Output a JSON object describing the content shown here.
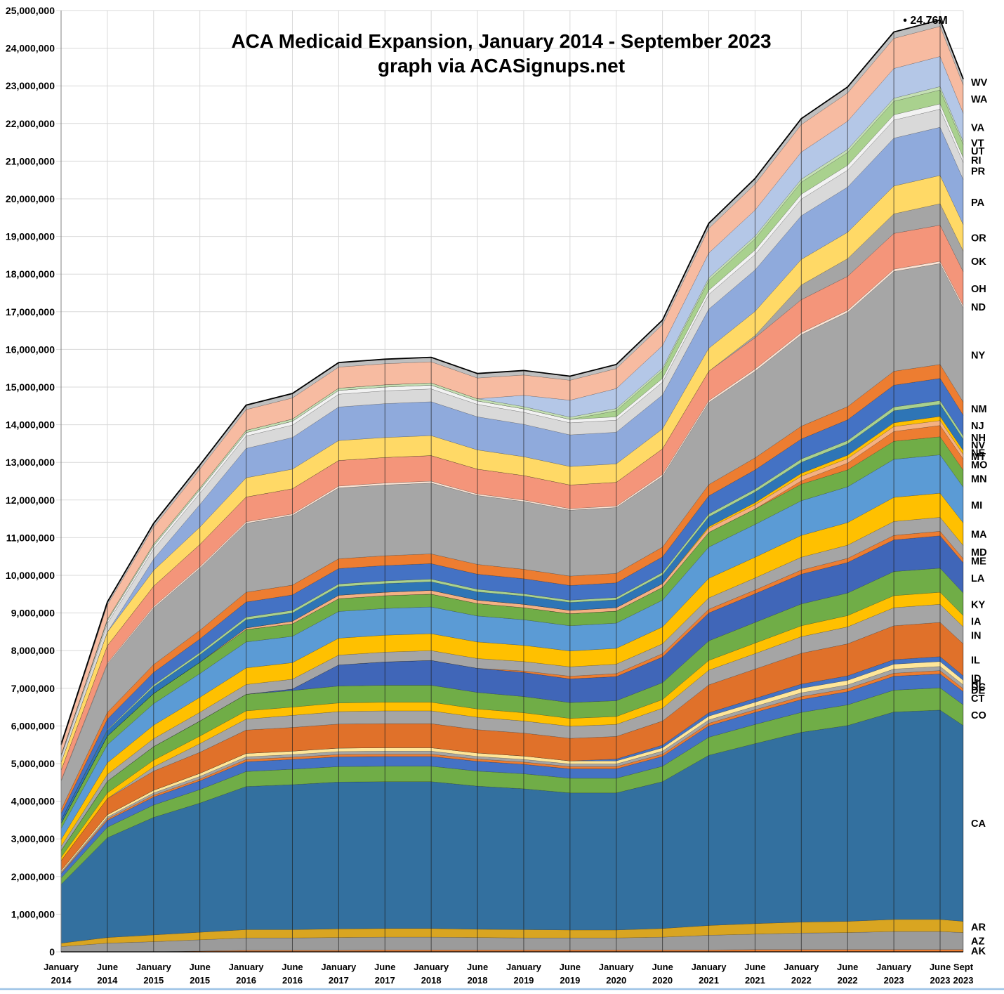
{
  "title": {
    "line1": "ACA Medicaid Expansion, January 2014 - September 2023",
    "line2": "graph via ACASignups.net"
  },
  "annotation": {
    "text": "• 24.76M",
    "value_millions": 24.76,
    "at_x_index": 19
  },
  "chart_data": {
    "type": "area",
    "stacked": true,
    "units": "enrollees (values in millions)",
    "title": "ACA Medicaid Expansion, January 2014 - September 2023",
    "subtitle": "graph via ACASignups.net",
    "xlabel": "",
    "ylabel": "",
    "ylim": [
      0,
      25000000
    ],
    "y_tick_interval": 1000000,
    "grid": true,
    "legend_position": "right-edge-state-labels",
    "y_tick_labels": [
      "0",
      "1,000,000",
      "2,000,000",
      "3,000,000",
      "4,000,000",
      "5,000,000",
      "6,000,000",
      "7,000,000",
      "8,000,000",
      "9,000,000",
      "10,000,000",
      "11,000,000",
      "12,000,000",
      "13,000,000",
      "14,000,000",
      "15,000,000",
      "16,000,000",
      "17,000,000",
      "18,000,000",
      "19,000,000",
      "20,000,000",
      "21,000,000",
      "22,000,000",
      "23,000,000",
      "24,000,000",
      "25,000,000"
    ],
    "x_tick_labels": [
      [
        "January",
        "2014"
      ],
      [
        "June",
        "2014"
      ],
      [
        "January",
        "2015"
      ],
      [
        "June",
        "2015"
      ],
      [
        "January",
        "2016"
      ],
      [
        "June",
        "2016"
      ],
      [
        "January",
        "2017"
      ],
      [
        "June",
        "2017"
      ],
      [
        "January",
        "2018"
      ],
      [
        "June",
        "2018"
      ],
      [
        "January",
        "2019"
      ],
      [
        "June",
        "2019"
      ],
      [
        "January",
        "2020"
      ],
      [
        "June",
        "2020"
      ],
      [
        "January",
        "2021"
      ],
      [
        "June",
        "2021"
      ],
      [
        "January",
        "2022"
      ],
      [
        "June",
        "2022"
      ],
      [
        "January",
        "2023"
      ],
      [
        "June",
        "2023"
      ],
      [
        "Sept",
        "2023"
      ]
    ],
    "series": [
      {
        "code": "AK",
        "color": "#ED7D31",
        "values": [
          0,
          0,
          0,
          0.02,
          0.04,
          0.04,
          0.04,
          0.05,
          0.05,
          0.05,
          0.05,
          0.05,
          0.05,
          0.05,
          0.05,
          0.06,
          0.06,
          0.06,
          0.06,
          0.06,
          0.06
        ]
      },
      {
        "code": "AZ",
        "color": "#9B9B9B",
        "values": [
          0.14,
          0.23,
          0.27,
          0.3,
          0.33,
          0.33,
          0.34,
          0.34,
          0.34,
          0.33,
          0.32,
          0.32,
          0.32,
          0.34,
          0.39,
          0.41,
          0.44,
          0.45,
          0.48,
          0.48,
          0.45
        ]
      },
      {
        "code": "AR",
        "color": "#D9A521",
        "values": [
          0.09,
          0.15,
          0.18,
          0.2,
          0.22,
          0.22,
          0.23,
          0.23,
          0.23,
          0.22,
          0.22,
          0.21,
          0.21,
          0.23,
          0.26,
          0.28,
          0.29,
          0.3,
          0.32,
          0.32,
          0.3
        ]
      },
      {
        "code": "CA",
        "color": "#33709F",
        "values": [
          1.56,
          2.65,
          3.12,
          3.43,
          3.8,
          3.85,
          3.9,
          3.9,
          3.9,
          3.8,
          3.74,
          3.64,
          3.64,
          3.9,
          4.52,
          4.78,
          5.04,
          5.2,
          5.51,
          5.56,
          5.2
        ]
      },
      {
        "code": "CO",
        "color": "#70AD47",
        "values": [
          0.17,
          0.28,
          0.33,
          0.36,
          0.4,
          0.41,
          0.41,
          0.41,
          0.41,
          0.4,
          0.4,
          0.39,
          0.39,
          0.41,
          0.48,
          0.51,
          0.53,
          0.55,
          0.58,
          0.59,
          0.55
        ]
      },
      {
        "code": "CT",
        "color": "#4472C4",
        "values": [
          0.11,
          0.18,
          0.21,
          0.23,
          0.26,
          0.26,
          0.26,
          0.26,
          0.26,
          0.26,
          0.25,
          0.25,
          0.25,
          0.26,
          0.3,
          0.32,
          0.34,
          0.35,
          0.37,
          0.37,
          0.35
        ]
      },
      {
        "code": "DE",
        "color": "#ED7D31",
        "values": [
          0.02,
          0.04,
          0.05,
          0.05,
          0.06,
          0.06,
          0.06,
          0.06,
          0.06,
          0.06,
          0.06,
          0.06,
          0.06,
          0.06,
          0.07,
          0.07,
          0.08,
          0.08,
          0.08,
          0.09,
          0.08
        ]
      },
      {
        "code": "DC",
        "color": "#A5A5A5",
        "values": [
          0.03,
          0.05,
          0.06,
          0.07,
          0.07,
          0.07,
          0.08,
          0.08,
          0.08,
          0.07,
          0.07,
          0.07,
          0.07,
          0.08,
          0.09,
          0.09,
          0.1,
          0.1,
          0.11,
          0.11,
          0.1
        ]
      },
      {
        "code": "HI",
        "color": "#FFE699",
        "values": [
          0.04,
          0.06,
          0.07,
          0.08,
          0.09,
          0.09,
          0.09,
          0.09,
          0.09,
          0.09,
          0.09,
          0.08,
          0.08,
          0.09,
          0.1,
          0.11,
          0.12,
          0.12,
          0.13,
          0.13,
          0.12
        ]
      },
      {
        "code": "ID",
        "color": "#4472C4",
        "values": [
          0,
          0,
          0,
          0,
          0,
          0,
          0,
          0,
          0,
          0,
          0,
          0,
          0.05,
          0.07,
          0.09,
          0.1,
          0.11,
          0.12,
          0.12,
          0.13,
          0.12
        ]
      },
      {
        "code": "IL",
        "color": "#E0712A",
        "values": [
          0.26,
          0.43,
          0.51,
          0.56,
          0.62,
          0.63,
          0.64,
          0.64,
          0.64,
          0.62,
          0.61,
          0.6,
          0.6,
          0.64,
          0.74,
          0.78,
          0.82,
          0.85,
          0.9,
          0.91,
          0.85
        ]
      },
      {
        "code": "IN",
        "color": "#A5A5A5",
        "values": [
          0,
          0,
          0.11,
          0.23,
          0.29,
          0.32,
          0.33,
          0.34,
          0.34,
          0.33,
          0.32,
          0.32,
          0.32,
          0.34,
          0.39,
          0.41,
          0.44,
          0.45,
          0.48,
          0.48,
          0.45
        ]
      },
      {
        "code": "IA",
        "color": "#FFC000",
        "values": [
          0.09,
          0.15,
          0.18,
          0.2,
          0.22,
          0.22,
          0.23,
          0.23,
          0.23,
          0.22,
          0.22,
          0.21,
          0.21,
          0.23,
          0.26,
          0.28,
          0.29,
          0.3,
          0.32,
          0.32,
          0.3
        ]
      },
      {
        "code": "KY",
        "color": "#70AD47",
        "values": [
          0.18,
          0.31,
          0.36,
          0.4,
          0.44,
          0.44,
          0.45,
          0.45,
          0.45,
          0.44,
          0.43,
          0.42,
          0.42,
          0.45,
          0.52,
          0.55,
          0.58,
          0.6,
          0.64,
          0.64,
          0.6
        ]
      },
      {
        "code": "LA",
        "color": "#4066B8",
        "values": [
          0,
          0,
          0,
          0,
          0,
          0.04,
          0.56,
          0.62,
          0.66,
          0.64,
          0.64,
          0.63,
          0.64,
          0.68,
          0.74,
          0.76,
          0.79,
          0.81,
          0.84,
          0.86,
          0.8
        ]
      },
      {
        "code": "ME",
        "color": "#ED7D31",
        "values": [
          0,
          0,
          0,
          0,
          0,
          0,
          0,
          0,
          0,
          0,
          0.04,
          0.07,
          0.08,
          0.09,
          0.1,
          0.1,
          0.11,
          0.11,
          0.12,
          0.12,
          0.11
        ]
      },
      {
        "code": "MD",
        "color": "#A5A5A5",
        "values": [
          0.11,
          0.18,
          0.21,
          0.23,
          0.26,
          0.26,
          0.26,
          0.26,
          0.26,
          0.26,
          0.25,
          0.25,
          0.25,
          0.26,
          0.3,
          0.32,
          0.34,
          0.35,
          0.37,
          0.37,
          0.35
        ]
      },
      {
        "code": "MA",
        "color": "#FFC000",
        "values": [
          0.18,
          0.31,
          0.36,
          0.4,
          0.44,
          0.44,
          0.45,
          0.45,
          0.45,
          0.44,
          0.43,
          0.42,
          0.42,
          0.45,
          0.52,
          0.55,
          0.58,
          0.6,
          0.64,
          0.64,
          0.6
        ]
      },
      {
        "code": "MI",
        "color": "#5B9BD5",
        "values": [
          0.29,
          0.48,
          0.57,
          0.63,
          0.69,
          0.7,
          0.71,
          0.71,
          0.71,
          0.69,
          0.68,
          0.67,
          0.67,
          0.71,
          0.83,
          0.87,
          0.92,
          0.95,
          1.01,
          1.02,
          0.95
        ]
      },
      {
        "code": "MN",
        "color": "#70AD47",
        "values": [
          0.14,
          0.23,
          0.27,
          0.3,
          0.33,
          0.33,
          0.34,
          0.34,
          0.34,
          0.33,
          0.32,
          0.32,
          0.32,
          0.34,
          0.39,
          0.41,
          0.44,
          0.45,
          0.48,
          0.48,
          0.45
        ]
      },
      {
        "code": "MO",
        "color": "#ED7D31",
        "values": [
          0,
          0,
          0,
          0,
          0,
          0,
          0,
          0,
          0,
          0,
          0,
          0,
          0,
          0,
          0,
          0,
          0.09,
          0.18,
          0.26,
          0.3,
          0.3
        ]
      },
      {
        "code": "MT",
        "color": "#F4B183",
        "values": [
          0,
          0,
          0,
          0,
          0.04,
          0.07,
          0.09,
          0.09,
          0.1,
          0.09,
          0.09,
          0.09,
          0.09,
          0.1,
          0.11,
          0.11,
          0.12,
          0.12,
          0.13,
          0.13,
          0.12
        ]
      },
      {
        "code": "NE",
        "color": "#FFC000",
        "values": [
          0,
          0,
          0,
          0,
          0,
          0,
          0,
          0,
          0,
          0,
          0,
          0,
          0,
          0,
          0.04,
          0.06,
          0.08,
          0.09,
          0.1,
          0.11,
          0.1
        ]
      },
      {
        "code": "NV",
        "color": "#2E75B6",
        "values": [
          0.09,
          0.15,
          0.18,
          0.2,
          0.22,
          0.22,
          0.23,
          0.23,
          0.23,
          0.22,
          0.22,
          0.21,
          0.21,
          0.23,
          0.26,
          0.28,
          0.29,
          0.3,
          0.32,
          0.32,
          0.3
        ]
      },
      {
        "code": "NH",
        "color": "#A9D18E",
        "values": [
          0,
          0.02,
          0.05,
          0.06,
          0.07,
          0.07,
          0.07,
          0.07,
          0.07,
          0.07,
          0.06,
          0.06,
          0.06,
          0.07,
          0.08,
          0.08,
          0.09,
          0.09,
          0.1,
          0.1,
          0.09
        ]
      },
      {
        "code": "NJ",
        "color": "#4472C4",
        "values": [
          0.17,
          0.28,
          0.33,
          0.36,
          0.4,
          0.41,
          0.41,
          0.41,
          0.41,
          0.4,
          0.4,
          0.39,
          0.39,
          0.41,
          0.48,
          0.51,
          0.53,
          0.55,
          0.58,
          0.59,
          0.55
        ]
      },
      {
        "code": "NM",
        "color": "#ED7D31",
        "values": [
          0.11,
          0.18,
          0.21,
          0.23,
          0.26,
          0.26,
          0.26,
          0.26,
          0.26,
          0.26,
          0.25,
          0.25,
          0.25,
          0.26,
          0.3,
          0.32,
          0.34,
          0.35,
          0.37,
          0.37,
          0.35
        ]
      },
      {
        "code": "NY",
        "color": "#A6A6A6",
        "values": [
          0.75,
          1.28,
          1.5,
          1.65,
          1.83,
          1.85,
          1.88,
          1.88,
          1.88,
          1.83,
          1.8,
          1.75,
          1.75,
          1.88,
          2.18,
          2.3,
          2.43,
          2.5,
          2.65,
          2.68,
          2.5
        ]
      },
      {
        "code": "ND",
        "color": "#FBE5D6",
        "values": [
          0.02,
          0.03,
          0.04,
          0.04,
          0.04,
          0.04,
          0.05,
          0.05,
          0.05,
          0.04,
          0.04,
          0.04,
          0.04,
          0.05,
          0.05,
          0.06,
          0.06,
          0.06,
          0.06,
          0.06,
          0.06
        ]
      },
      {
        "code": "OH",
        "color": "#F4957A",
        "values": [
          0.27,
          0.46,
          0.54,
          0.59,
          0.66,
          0.67,
          0.68,
          0.68,
          0.68,
          0.66,
          0.65,
          0.63,
          0.63,
          0.68,
          0.78,
          0.83,
          0.87,
          0.9,
          0.95,
          0.96,
          0.9
        ]
      },
      {
        "code": "OK",
        "color": "#A5A5A5",
        "values": [
          0,
          0,
          0,
          0,
          0,
          0,
          0,
          0,
          0,
          0,
          0,
          0,
          0,
          0,
          0,
          0.06,
          0.39,
          0.47,
          0.52,
          0.57,
          0.55
        ]
      },
      {
        "code": "OR",
        "color": "#FFD966",
        "values": [
          0.21,
          0.36,
          0.42,
          0.46,
          0.51,
          0.52,
          0.53,
          0.53,
          0.53,
          0.51,
          0.5,
          0.49,
          0.49,
          0.53,
          0.61,
          0.64,
          0.68,
          0.7,
          0.74,
          0.75,
          0.7
        ]
      },
      {
        "code": "PA",
        "color": "#8FAADC",
        "values": [
          0,
          0,
          0.3,
          0.6,
          0.78,
          0.84,
          0.89,
          0.9,
          0.9,
          0.88,
          0.86,
          0.84,
          0.84,
          0.9,
          1.04,
          1.1,
          1.16,
          1.2,
          1.27,
          1.28,
          1.2
        ]
      },
      {
        "code": "PR",
        "color": "#D9D9D9",
        "values": [
          0.14,
          0.23,
          0.27,
          0.3,
          0.33,
          0.33,
          0.34,
          0.34,
          0.34,
          0.33,
          0.32,
          0.32,
          0.32,
          0.34,
          0.39,
          0.41,
          0.44,
          0.45,
          0.48,
          0.48,
          0.45
        ]
      },
      {
        "code": "RI",
        "color": "#F2F2F2",
        "values": [
          0.04,
          0.07,
          0.08,
          0.09,
          0.09,
          0.1,
          0.1,
          0.1,
          0.1,
          0.09,
          0.09,
          0.09,
          0.09,
          0.1,
          0.11,
          0.12,
          0.13,
          0.13,
          0.14,
          0.14,
          0.13
        ]
      },
      {
        "code": "UT",
        "color": "#A9D18E",
        "values": [
          0,
          0,
          0,
          0,
          0,
          0,
          0,
          0,
          0,
          0,
          0,
          0,
          0.16,
          0.21,
          0.26,
          0.3,
          0.32,
          0.34,
          0.36,
          0.37,
          0.35
        ]
      },
      {
        "code": "VT",
        "color": "#C5E0B4",
        "values": [
          0.02,
          0.04,
          0.05,
          0.05,
          0.06,
          0.06,
          0.06,
          0.06,
          0.06,
          0.06,
          0.06,
          0.06,
          0.06,
          0.06,
          0.07,
          0.07,
          0.08,
          0.08,
          0.08,
          0.09,
          0.08
        ]
      },
      {
        "code": "VA",
        "color": "#B4C7E7",
        "values": [
          0,
          0,
          0,
          0,
          0,
          0,
          0,
          0,
          0,
          0,
          0.3,
          0.45,
          0.53,
          0.6,
          0.66,
          0.69,
          0.72,
          0.75,
          0.79,
          0.8,
          0.75
        ]
      },
      {
        "code": "WA",
        "color": "#F7BBA1",
        "values": [
          0.23,
          0.38,
          0.45,
          0.5,
          0.55,
          0.56,
          0.56,
          0.56,
          0.56,
          0.55,
          0.54,
          0.53,
          0.53,
          0.56,
          0.65,
          0.69,
          0.73,
          0.75,
          0.8,
          0.8,
          0.75
        ]
      },
      {
        "code": "WV",
        "color": "#BFBFBF",
        "values": [
          0.05,
          0.08,
          0.1,
          0.11,
          0.12,
          0.12,
          0.12,
          0.12,
          0.12,
          0.12,
          0.12,
          0.11,
          0.11,
          0.12,
          0.14,
          0.15,
          0.16,
          0.16,
          0.17,
          0.17,
          0.16
        ]
      }
    ],
    "colors": {
      "gridline": "#D9D9D9",
      "axis_line": "#808080",
      "baseline": "#000000",
      "total_outline": "#000000",
      "inner_vertical_line": "#1a1a1a",
      "bottom_border": "#9DC3E6",
      "text": "#000000"
    }
  }
}
